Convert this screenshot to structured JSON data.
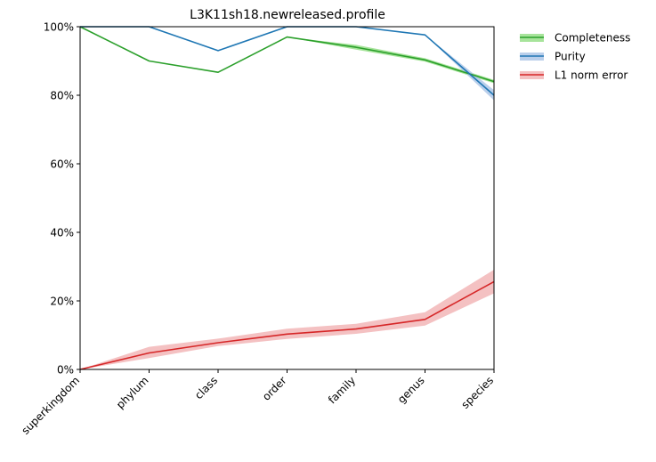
{
  "chart_data": {
    "type": "line",
    "title": "L3K11sh18.newreleased.profile",
    "xlabel": "",
    "ylabel": "",
    "ylim": [
      0,
      100
    ],
    "y_ticks": [
      "0%",
      "20%",
      "40%",
      "60%",
      "80%",
      "100%"
    ],
    "categories": [
      "superkingdom",
      "phylum",
      "class",
      "order",
      "family",
      "genus",
      "species"
    ],
    "grid": false,
    "legend_position": "outside-top-right",
    "series": [
      {
        "name": "Completeness",
        "color": "#2ca02c",
        "band_color": "#98df8a",
        "values": [
          100,
          90,
          86.7,
          97,
          94,
          90.3,
          84
        ],
        "lower": [
          100,
          90,
          86.7,
          97,
          93.3,
          89.8,
          83.5
        ],
        "upper": [
          100,
          90,
          86.7,
          97,
          94.7,
          90.8,
          84.5
        ]
      },
      {
        "name": "Purity",
        "color": "#1f77b4",
        "band_color": "#aec7e8",
        "values": [
          100,
          100,
          93,
          100,
          100,
          97.6,
          80
        ],
        "lower": [
          100,
          100,
          93,
          100,
          100,
          97.6,
          78.5
        ],
        "upper": [
          100,
          100,
          93,
          100,
          100,
          97.6,
          81.5
        ]
      },
      {
        "name": "L1 norm error",
        "color": "#d62728",
        "band_color": "#f2b6b7",
        "values": [
          0,
          4.8,
          7.8,
          10.3,
          11.8,
          14.6,
          25.6
        ],
        "lower": [
          0,
          3.3,
          6.8,
          8.9,
          10.4,
          12.8,
          22.2
        ],
        "upper": [
          0,
          6.6,
          9,
          11.9,
          13.3,
          16.7,
          29.1
        ]
      }
    ]
  }
}
